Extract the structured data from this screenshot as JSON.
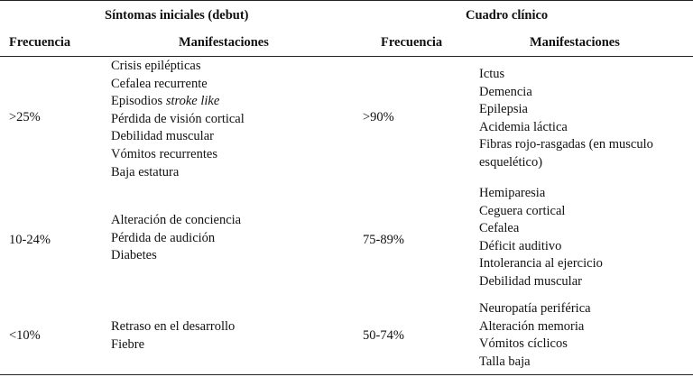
{
  "headers": {
    "group_left": "Síntomas iniciales (debut)",
    "group_right": "Cuadro clínico",
    "freq_left": "Frecuencia",
    "manif_left": "Manifestaciones",
    "freq_right": "Frecuencia",
    "manif_right": "Manifestaciones"
  },
  "rows": [
    {
      "freq_left": ">25%",
      "manif_left": [
        {
          "text": "Crisis epilépticas"
        },
        {
          "text": "Cefalea recurrente"
        },
        {
          "text": "Episodios ",
          "italic": "stroke like"
        },
        {
          "text": "Pérdida de visión cortical"
        },
        {
          "text": "Debilidad muscular"
        },
        {
          "text": "Vómitos recurrentes"
        },
        {
          "text": "Baja estatura"
        }
      ],
      "freq_right": ">90%",
      "manif_right": [
        "Ictus",
        "Demencia",
        "Epilepsia",
        "Acidemia láctica",
        "Fibras rojo-rasgadas (en musculo esquelético)"
      ]
    },
    {
      "freq_left": "10-24%",
      "manif_left": [
        {
          "text": "Alteración de conciencia"
        },
        {
          "text": "Pérdida de audición"
        },
        {
          "text": "Diabetes"
        }
      ],
      "freq_right": "75-89%",
      "manif_right": [
        "Hemiparesia",
        "Ceguera cortical",
        "Cefalea",
        "Déficit auditivo",
        "Intolerancia al ejercicio",
        "Debilidad muscular"
      ]
    },
    {
      "freq_left": "<10%",
      "manif_left": [
        {
          "text": "Retraso en el desarrollo"
        },
        {
          "text": "Fiebre"
        }
      ],
      "freq_right": "50-74%",
      "manif_right": [
        "Neuropatía periférica",
        "Alteración memoria",
        "Vómitos cíclicos",
        "Talla baja"
      ]
    }
  ]
}
